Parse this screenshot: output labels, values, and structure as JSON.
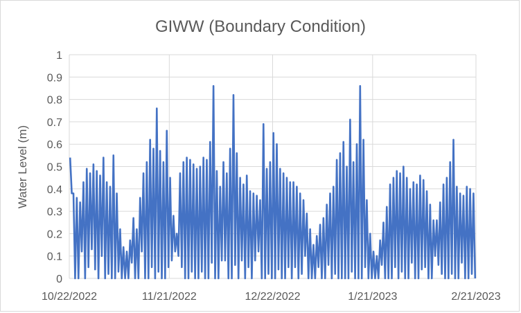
{
  "chart_data": {
    "type": "line",
    "title": "GIWW (Boundary Condition)",
    "xlabel": "",
    "ylabel": "Water Level (m)",
    "ylim": [
      0,
      1
    ],
    "y_ticks": [
      "0",
      "0.1",
      "0.2",
      "0.3",
      "0.4",
      "0.5",
      "0.6",
      "0.7",
      "0.8",
      "0.9",
      "1"
    ],
    "x_ticks": [
      {
        "date": "2022-10-22",
        "label": "10/22/2022"
      },
      {
        "date": "2022-11-21",
        "label": "11/21/2022"
      },
      {
        "date": "2022-12-22",
        "label": "12/22/2022"
      },
      {
        "date": "2023-01-21",
        "label": "1/21/2023"
      },
      {
        "date": "2023-02-21",
        "label": "2/21/2023"
      }
    ],
    "xlim": [
      "2022-10-22",
      "2023-02-21"
    ],
    "grid": true,
    "legend": "none",
    "series_color": "#4472c4",
    "series": [
      {
        "x": [
          "2022-10-22",
          "2022-10-23",
          "2022-10-24",
          "2022-10-25",
          "2022-10-26",
          "2022-10-27",
          "2022-10-28",
          "2022-10-29",
          "2022-10-30",
          "2022-10-31",
          "2022-11-01",
          "2022-11-02",
          "2022-11-03",
          "2022-11-04",
          "2022-11-05",
          "2022-11-06",
          "2022-11-07",
          "2022-11-08",
          "2022-11-09",
          "2022-11-10",
          "2022-11-11",
          "2022-11-12",
          "2022-11-13",
          "2022-11-14",
          "2022-11-15",
          "2022-11-16",
          "2022-11-17",
          "2022-11-18",
          "2022-11-19",
          "2022-11-20",
          "2022-11-21",
          "2022-11-22",
          "2022-11-23",
          "2022-11-24",
          "2022-11-25",
          "2022-11-26",
          "2022-11-27",
          "2022-11-28",
          "2022-11-29",
          "2022-11-30",
          "2022-12-01",
          "2022-12-02",
          "2022-12-03",
          "2022-12-04",
          "2022-12-05",
          "2022-12-06",
          "2022-12-07",
          "2022-12-08",
          "2022-12-09",
          "2022-12-10",
          "2022-12-11",
          "2022-12-12",
          "2022-12-13",
          "2022-12-14",
          "2022-12-15",
          "2022-12-16",
          "2022-12-17",
          "2022-12-18",
          "2022-12-19",
          "2022-12-20",
          "2022-12-21",
          "2022-12-22",
          "2022-12-23",
          "2022-12-24",
          "2022-12-25",
          "2022-12-26",
          "2022-12-27",
          "2022-12-28",
          "2022-12-29",
          "2022-12-30",
          "2022-12-31",
          "2023-01-01",
          "2023-01-02",
          "2023-01-03",
          "2023-01-04",
          "2023-01-05",
          "2023-01-06",
          "2023-01-07",
          "2023-01-08",
          "2023-01-09",
          "2023-01-10",
          "2023-01-11",
          "2023-01-12",
          "2023-01-13",
          "2023-01-14",
          "2023-01-15",
          "2023-01-16",
          "2023-01-17",
          "2023-01-18",
          "2023-01-19",
          "2023-01-20",
          "2023-01-21",
          "2023-01-22",
          "2023-01-23",
          "2023-01-24",
          "2023-01-25",
          "2023-01-26",
          "2023-01-27",
          "2023-01-28",
          "2023-01-29",
          "2023-01-30",
          "2023-01-31",
          "2023-02-01",
          "2023-02-02",
          "2023-02-03",
          "2023-02-04",
          "2023-02-05",
          "2023-02-06",
          "2023-02-07",
          "2023-02-08",
          "2023-02-09",
          "2023-02-10",
          "2023-02-11",
          "2023-02-12",
          "2023-02-13",
          "2023-02-14",
          "2023-02-15",
          "2023-02-16",
          "2023-02-17",
          "2023-02-18",
          "2023-02-19",
          "2023-02-20"
        ],
        "high": [
          0.54,
          0.38,
          0.36,
          0.34,
          0.43,
          0.49,
          0.47,
          0.51,
          0.48,
          0.46,
          0.54,
          0.43,
          0.41,
          0.55,
          0.38,
          0.22,
          0.14,
          0.12,
          0.17,
          0.27,
          0.22,
          0.36,
          0.47,
          0.52,
          0.62,
          0.58,
          0.76,
          0.57,
          0.52,
          0.66,
          0.45,
          0.28,
          0.2,
          0.47,
          0.52,
          0.54,
          0.53,
          0.51,
          0.49,
          0.5,
          0.54,
          0.53,
          0.61,
          0.86,
          0.48,
          0.41,
          0.52,
          0.47,
          0.58,
          0.82,
          0.56,
          0.45,
          0.42,
          0.46,
          0.39,
          0.38,
          0.37,
          0.35,
          0.69,
          0.49,
          0.52,
          0.65,
          0.6,
          0.49,
          0.47,
          0.45,
          0.43,
          0.43,
          0.41,
          0.38,
          0.35,
          0.29,
          0.22,
          0.15,
          0.19,
          0.24,
          0.27,
          0.33,
          0.38,
          0.41,
          0.53,
          0.56,
          0.61,
          0.5,
          0.71,
          0.52,
          0.6,
          0.86,
          0.62,
          0.35,
          0.2,
          0.12,
          0.1,
          0.17,
          0.25,
          0.32,
          0.42,
          0.45,
          0.48,
          0.47,
          0.5,
          0.45,
          0.4,
          0.43,
          0.42,
          0.46,
          0.44,
          0.39,
          0.33,
          0.26,
          0.26,
          0.34,
          0.42,
          0.45,
          0.52,
          0.62,
          0.41,
          0.38,
          0.37,
          0.41,
          0.4,
          0.38
        ],
        "low": [
          0.38,
          0.0,
          0.0,
          0.12,
          0.0,
          0.05,
          0.13,
          0.04,
          0.0,
          0.1,
          0.0,
          0.02,
          0.0,
          0.0,
          0.03,
          0.0,
          0.0,
          0.0,
          0.07,
          0.0,
          0.0,
          0.12,
          0.0,
          0.0,
          0.05,
          0.0,
          0.03,
          0.0,
          0.0,
          0.05,
          0.08,
          0.12,
          0.1,
          0.05,
          0.0,
          0.0,
          0.03,
          0.0,
          0.0,
          0.03,
          0.0,
          0.0,
          0.07,
          0.0,
          0.0,
          0.08,
          0.08,
          0.0,
          0.0,
          0.06,
          0.0,
          0.08,
          0.0,
          0.05,
          0.0,
          0.08,
          0.12,
          0.0,
          0.0,
          0.02,
          0.0,
          0.0,
          0.04,
          0.0,
          0.0,
          0.05,
          0.0,
          0.05,
          0.0,
          0.02,
          0.1,
          0.0,
          0.0,
          0.0,
          0.05,
          0.0,
          0.0,
          0.06,
          0.0,
          0.02,
          0.0,
          0.0,
          0.0,
          0.0,
          0.03,
          0.0,
          0.0,
          0.0,
          0.05,
          0.0,
          0.0,
          0.0,
          0.0,
          0.06,
          0.0,
          0.0,
          0.0,
          0.05,
          0.0,
          0.03,
          0.0,
          0.0,
          0.07,
          0.0,
          0.0,
          0.04,
          0.05,
          0.0,
          0.0,
          0.1,
          0.06,
          0.02,
          0.0,
          0.0,
          0.02,
          0.0,
          0.0,
          0.07,
          0.0,
          0.0,
          0.02,
          0.0
        ]
      }
    ]
  }
}
